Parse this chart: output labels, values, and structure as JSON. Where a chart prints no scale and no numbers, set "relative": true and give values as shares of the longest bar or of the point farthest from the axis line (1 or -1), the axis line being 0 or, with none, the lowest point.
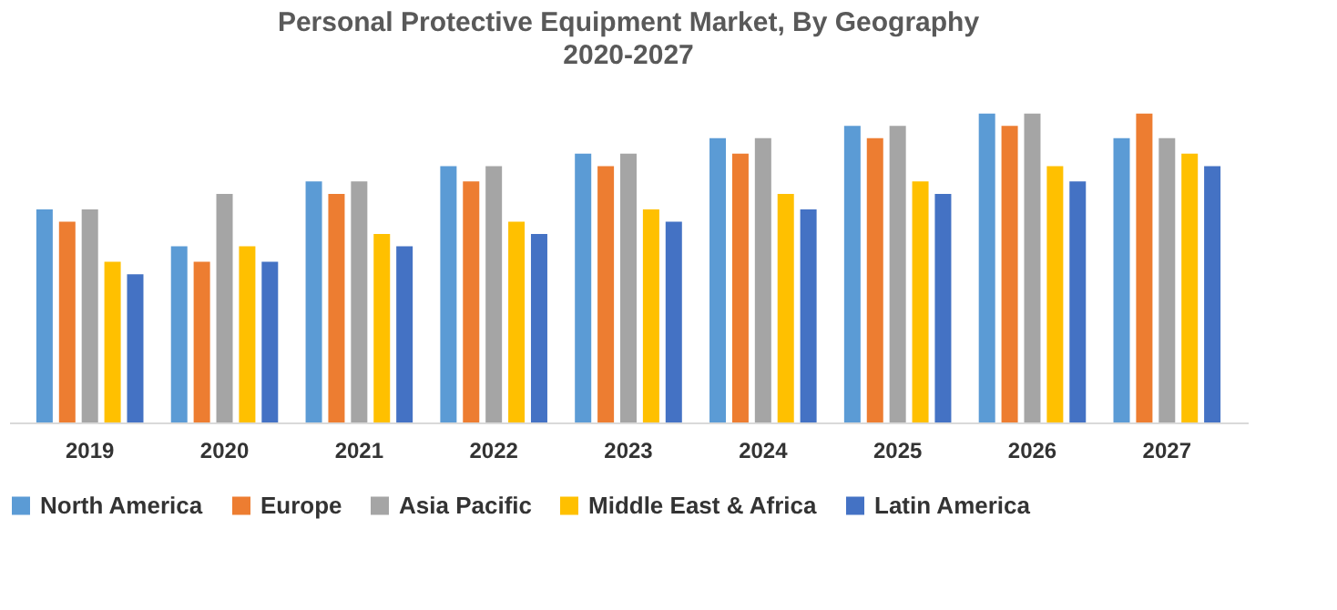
{
  "chart_data": {
    "type": "bar",
    "title": "Personal Protective Equipment Market, By Geography",
    "subtitle": "2020-2027",
    "relative": true,
    "legend": "bottom",
    "grid": false,
    "categories": [
      "2019",
      "2020",
      "2021",
      "2022",
      "2023",
      "2024",
      "2025",
      "2026",
      "2027"
    ],
    "series": [
      {
        "name": "North America",
        "color": "#5b9bd5",
        "values": [
          0.69,
          0.57,
          0.78,
          0.83,
          0.87,
          0.92,
          0.96,
          1,
          0.92
        ]
      },
      {
        "name": "Europe",
        "color": "#ed7d31",
        "values": [
          0.65,
          0.52,
          0.74,
          0.78,
          0.83,
          0.87,
          0.92,
          0.96,
          1
        ]
      },
      {
        "name": "Asia Pacific",
        "color": "#a5a5a5",
        "values": [
          0.69,
          0.74,
          0.78,
          0.83,
          0.87,
          0.92,
          0.96,
          1,
          0.92
        ]
      },
      {
        "name": "Middle East & Africa",
        "color": "#ffc000",
        "values": [
          0.52,
          0.57,
          0.61,
          0.65,
          0.69,
          0.74,
          0.78,
          0.83,
          0.87
        ]
      },
      {
        "name": "Latin America",
        "color": "#4472c4",
        "values": [
          0.48,
          0.52,
          0.57,
          0.61,
          0.65,
          0.69,
          0.74,
          0.78,
          0.83
        ]
      }
    ]
  }
}
